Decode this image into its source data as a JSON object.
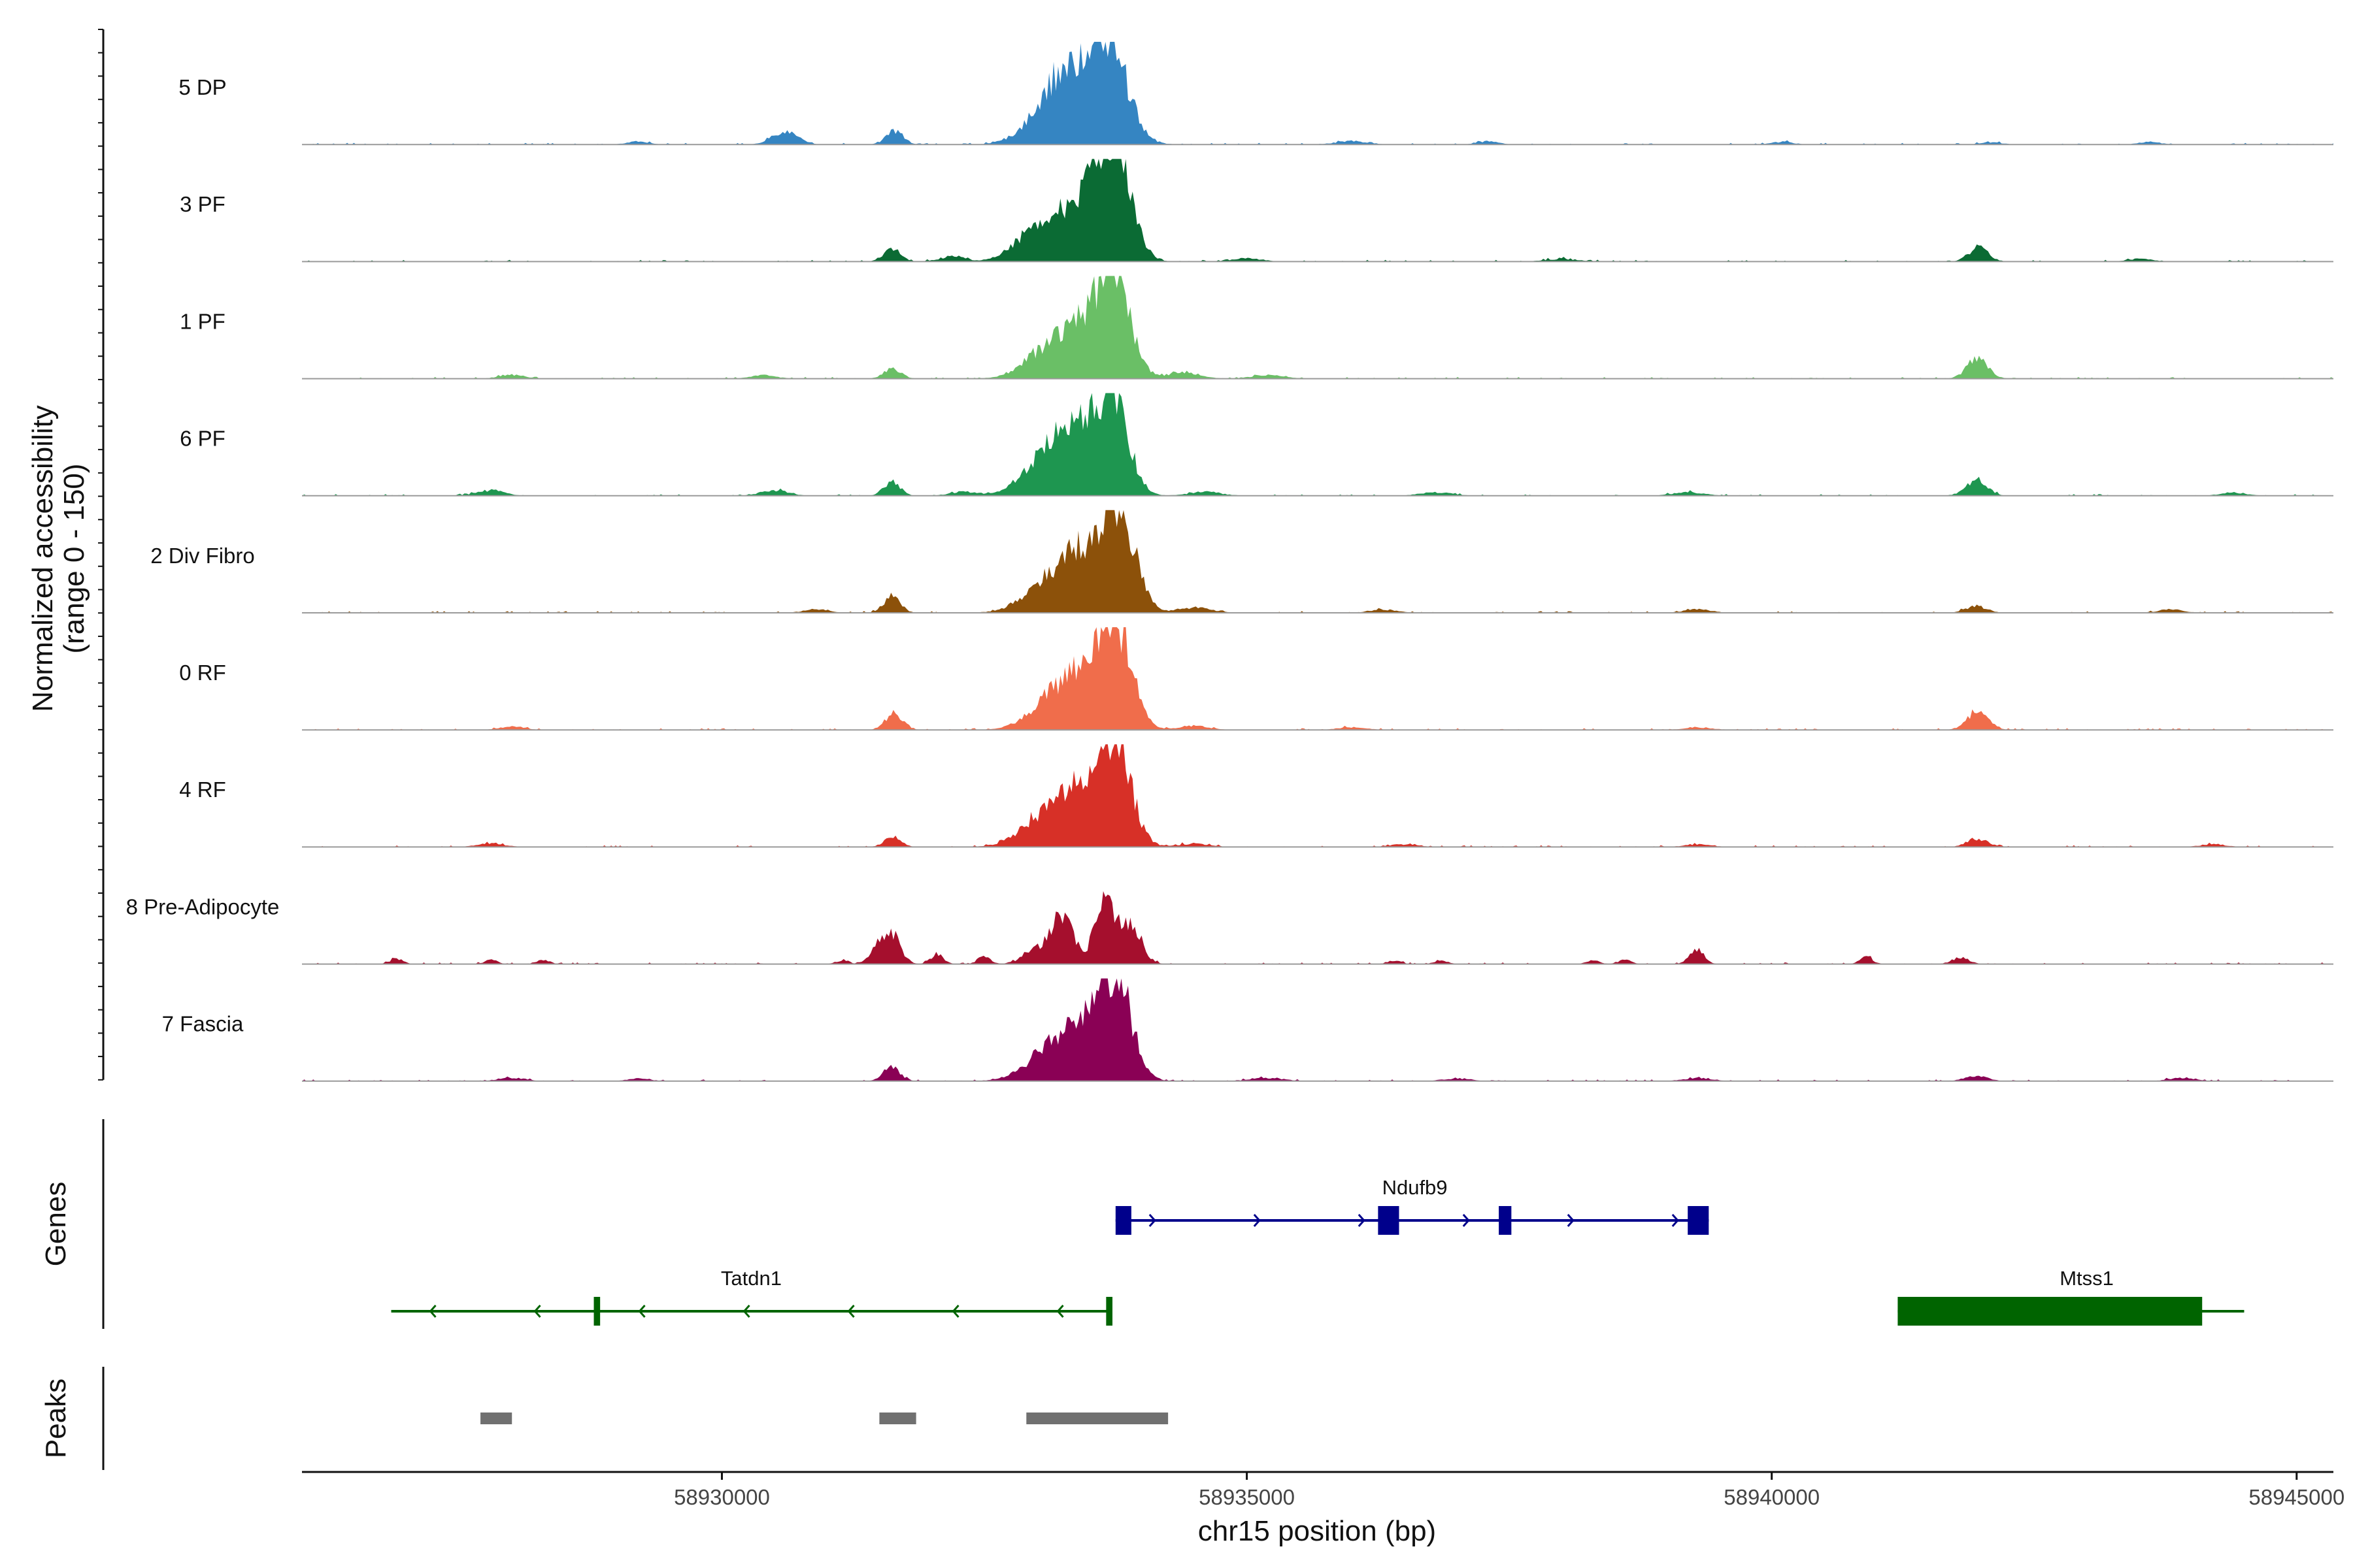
{
  "chart_data": {
    "type": "area",
    "title": "",
    "xlabel": "chr15 position (bp)",
    "ylabel": "Normalized accessibility\n(range 0 - 150)",
    "region": {
      "chrom": "chr15",
      "start": 58926000,
      "end": 58945350
    },
    "ylim": [
      0,
      150
    ],
    "x_ticks": [
      58930000,
      58935000,
      58940000,
      58945000
    ],
    "x_tick_labels": [
      "58930000",
      "58935000",
      "58940000",
      "58945000"
    ],
    "series": [
      {
        "name": "5 DP",
        "color": "#3585c2",
        "peaks": [
          [
            58933680,
            150,
            180
          ],
          [
            58933300,
            85,
            180
          ],
          [
            58933050,
            40,
            200
          ],
          [
            58931640,
            20,
            80
          ],
          [
            58930600,
            20,
            120
          ],
          [
            58929200,
            5,
            100
          ],
          [
            58936000,
            5,
            150
          ],
          [
            58937300,
            5,
            100
          ],
          [
            58940100,
            4,
            100
          ],
          [
            58943600,
            4,
            100
          ],
          [
            58942100,
            3,
            100
          ]
        ]
      },
      {
        "name": "3 PF",
        "color": "#0b6b34",
        "peaks": [
          [
            58933750,
            145,
            150
          ],
          [
            58933550,
            80,
            200
          ],
          [
            58933200,
            50,
            220
          ],
          [
            58932900,
            25,
            180
          ],
          [
            58931620,
            20,
            80
          ],
          [
            58932200,
            8,
            120
          ],
          [
            58941970,
            22,
            90
          ],
          [
            58935000,
            5,
            140
          ],
          [
            58938000,
            4,
            150
          ],
          [
            58943500,
            4,
            120
          ]
        ]
      },
      {
        "name": "1 PF",
        "color": "#6abf66",
        "peaks": [
          [
            58933740,
            140,
            150
          ],
          [
            58933450,
            70,
            200
          ],
          [
            58933100,
            40,
            220
          ],
          [
            58931620,
            15,
            80
          ],
          [
            58941960,
            30,
            100
          ],
          [
            58934400,
            10,
            150
          ],
          [
            58928000,
            6,
            120
          ],
          [
            58930400,
            5,
            120
          ],
          [
            58935200,
            5,
            150
          ]
        ]
      },
      {
        "name": "6 PF",
        "color": "#1e9650",
        "peaks": [
          [
            58933720,
            145,
            150
          ],
          [
            58933350,
            90,
            200
          ],
          [
            58933050,
            40,
            220
          ],
          [
            58931620,
            20,
            80
          ],
          [
            58941950,
            25,
            100
          ],
          [
            58927800,
            8,
            130
          ],
          [
            58930500,
            8,
            130
          ],
          [
            58932300,
            6,
            130
          ],
          [
            58934600,
            6,
            150
          ],
          [
            58936800,
            5,
            150
          ],
          [
            58939200,
            5,
            150
          ],
          [
            58944400,
            5,
            120
          ]
        ]
      },
      {
        "name": "2 Div Fibro",
        "color": "#8c510a",
        "peaks": [
          [
            58933770,
            150,
            160
          ],
          [
            58933400,
            80,
            220
          ],
          [
            58933050,
            30,
            220
          ],
          [
            58931620,
            25,
            80
          ],
          [
            58941950,
            10,
            100
          ],
          [
            58934500,
            8,
            150
          ],
          [
            58930900,
            5,
            120
          ],
          [
            58936300,
            5,
            130
          ],
          [
            58939300,
            5,
            130
          ],
          [
            58943800,
            5,
            120
          ]
        ]
      },
      {
        "name": "0 RF",
        "color": "#f06d4b",
        "peaks": [
          [
            58933760,
            140,
            150
          ],
          [
            58933450,
            70,
            200
          ],
          [
            58933150,
            40,
            220
          ],
          [
            58931640,
            25,
            80
          ],
          [
            58941960,
            28,
            100
          ],
          [
            58934500,
            6,
            150
          ],
          [
            58928000,
            5,
            120
          ],
          [
            58936000,
            4,
            130
          ],
          [
            58939300,
            4,
            130
          ]
        ]
      },
      {
        "name": "4 RF",
        "color": "#d73027",
        "peaks": [
          [
            58933750,
            145,
            150
          ],
          [
            58933400,
            75,
            200
          ],
          [
            58933050,
            40,
            220
          ],
          [
            58931630,
            15,
            80
          ],
          [
            58941960,
            12,
            100
          ],
          [
            58927800,
            5,
            130
          ],
          [
            58934500,
            5,
            150
          ],
          [
            58936500,
            4,
            130
          ],
          [
            58939300,
            4,
            130
          ],
          [
            58944200,
            4,
            120
          ]
        ]
      },
      {
        "name": "8 Pre-Adipocyte",
        "color": "#a50f2d",
        "peaks": [
          [
            58933650,
            90,
            100
          ],
          [
            58933250,
            70,
            100
          ],
          [
            58933900,
            55,
            100
          ],
          [
            58933000,
            25,
            120
          ],
          [
            58931630,
            40,
            80
          ],
          [
            58931500,
            25,
            80
          ],
          [
            58932050,
            15,
            60
          ],
          [
            58932500,
            12,
            60
          ],
          [
            58939280,
            22,
            70
          ],
          [
            58941800,
            10,
            80
          ],
          [
            58926900,
            8,
            60
          ],
          [
            58927800,
            6,
            60
          ],
          [
            58928300,
            6,
            60
          ],
          [
            58931150,
            6,
            60
          ],
          [
            58936400,
            6,
            60
          ],
          [
            58936850,
            6,
            60
          ],
          [
            58938300,
            6,
            60
          ],
          [
            58938600,
            6,
            60
          ],
          [
            58940900,
            10,
            60
          ]
        ]
      },
      {
        "name": "7 Fascia",
        "color": "#8a0155",
        "peaks": [
          [
            58933760,
            140,
            150
          ],
          [
            58933450,
            70,
            200
          ],
          [
            58933100,
            40,
            220
          ],
          [
            58931620,
            20,
            80
          ],
          [
            58941950,
            8,
            100
          ],
          [
            58928000,
            5,
            130
          ],
          [
            58929200,
            4,
            100
          ],
          [
            58935200,
            5,
            150
          ],
          [
            58937000,
            4,
            130
          ],
          [
            58939300,
            5,
            130
          ],
          [
            58943900,
            5,
            120
          ]
        ]
      }
    ],
    "genes": {
      "title": "Genes",
      "items": [
        {
          "name": "Ndufb9",
          "strand": "+",
          "color": "#00008b",
          "start": 58933750,
          "end": 58939400,
          "exons": [
            [
              58933750,
              58933900
            ],
            [
              58936250,
              58936450
            ],
            [
              58937400,
              58937520
            ],
            [
              58939200,
              58939400
            ]
          ]
        },
        {
          "name": "Tatdn1",
          "strand": "-",
          "color": "#006400",
          "start": 58926850,
          "end": 58933700,
          "exons": [
            [
              58928780,
              58928840
            ],
            [
              58933660,
              58933720
            ]
          ]
        },
        {
          "name": "Mtss1",
          "strand": "-",
          "color": "#006400",
          "start": 58941200,
          "end": 58944500,
          "exons": [
            [
              58941200,
              58944100
            ]
          ]
        }
      ]
    },
    "peaks_track": {
      "title": "Peaks",
      "color": "#707070",
      "regions": [
        [
          58927700,
          58928000
        ],
        [
          58931500,
          58931850
        ],
        [
          58932900,
          58934250
        ]
      ]
    }
  }
}
